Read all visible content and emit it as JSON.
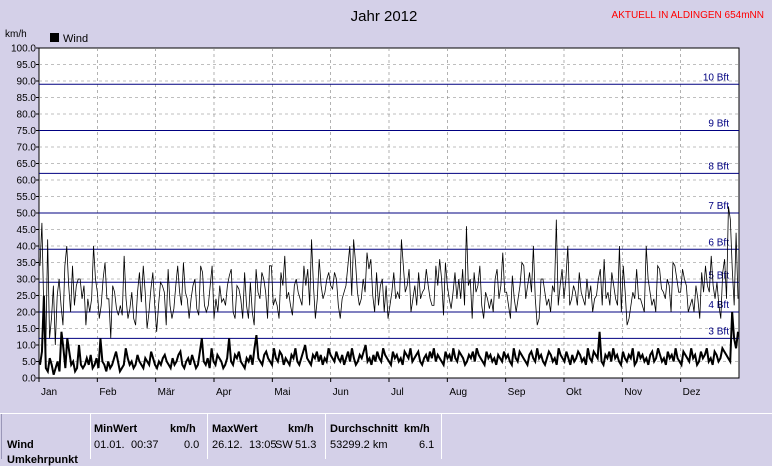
{
  "chart_data": {
    "type": "line",
    "title": "Jahr 2012",
    "station": "AKTUELL IN ALDINGEN 654mNN",
    "ylabel": "km/h",
    "ylim": [
      0,
      100
    ],
    "yticks": [
      "0.0",
      "5.0",
      "10.0",
      "15.0",
      "20.0",
      "25.0",
      "30.0",
      "35.0",
      "40.0",
      "45.0",
      "50.0",
      "55.0",
      "60.0",
      "65.0",
      "70.0",
      "75.0",
      "80.0",
      "85.0",
      "90.0",
      "95.0",
      "100.0"
    ],
    "months": [
      "Jan",
      "Feb",
      "Mär",
      "Apr",
      "Mai",
      "Jun",
      "Jul",
      "Aug",
      "Sep",
      "Okt",
      "Nov",
      "Dez"
    ],
    "legend": {
      "label": "Wind",
      "color": "#000000"
    },
    "beaufort": [
      {
        "label": "3 Bft",
        "value": 12
      },
      {
        "label": "4 Bft",
        "value": 20
      },
      {
        "label": "5 Bft",
        "value": 29
      },
      {
        "label": "6 Bft",
        "value": 39
      },
      {
        "label": "7 Bft",
        "value": 50
      },
      {
        "label": "8 Bft",
        "value": 62
      },
      {
        "label": "9 Bft",
        "value": 75
      },
      {
        "label": "10 Bft",
        "value": 89
      }
    ],
    "series": [
      {
        "name": "Wind",
        "description": "daily max (thin) and daily average (thick)",
        "max_values": [
          34,
          47,
          20,
          8,
          42,
          12,
          18,
          28,
          10,
          25,
          30,
          22,
          16,
          34,
          40,
          28,
          20,
          34,
          22,
          28,
          30,
          30,
          24,
          28,
          16,
          24,
          20,
          24,
          40,
          30,
          26,
          18,
          22,
          30,
          35,
          24,
          24,
          12,
          28,
          26,
          21,
          19,
          22,
          19,
          37,
          24,
          18,
          21,
          26,
          18,
          16,
          26,
          32,
          23,
          34,
          26,
          15,
          20,
          27,
          32,
          22,
          14,
          22,
          29,
          28,
          26,
          16,
          33,
          22,
          18,
          21,
          28,
          34,
          26,
          22,
          35,
          26,
          24,
          18,
          24,
          28,
          30,
          21,
          19,
          34,
          32,
          22,
          20,
          22,
          28,
          34,
          18,
          24,
          20,
          28,
          23,
          24,
          22,
          28,
          31,
          33,
          20,
          18,
          28,
          27,
          24,
          18,
          32,
          22,
          18,
          29,
          20,
          16,
          33,
          26,
          24,
          32,
          30,
          26,
          18,
          34,
          34,
          22,
          24,
          22,
          18,
          32,
          28,
          37,
          24,
          26,
          22,
          19,
          28,
          30,
          26,
          24,
          22,
          34,
          28,
          33,
          22,
          42,
          28,
          18,
          24,
          36,
          28,
          24,
          26,
          30,
          32,
          28,
          27,
          32,
          30,
          22,
          18,
          24,
          26,
          28,
          34,
          40,
          25,
          42,
          35,
          26,
          22,
          24,
          30,
          26,
          38,
          33,
          36,
          25,
          20,
          32,
          22,
          28,
          30,
          20,
          28,
          18,
          22,
          26,
          32,
          24,
          26,
          24,
          42,
          34,
          26,
          28,
          33,
          20,
          24,
          28,
          22,
          32,
          24,
          26,
          27,
          33,
          28,
          24,
          22,
          22,
          34,
          28,
          36,
          30,
          19,
          35,
          28,
          24,
          21,
          26,
          32,
          24,
          30,
          24,
          33,
          22,
          46,
          28,
          30,
          18,
          32,
          26,
          28,
          34,
          22,
          18,
          26,
          24,
          21,
          24,
          20,
          30,
          33,
          24,
          28,
          38,
          26,
          26,
          22,
          18,
          31,
          24,
          20,
          24,
          28,
          35,
          34,
          24,
          28,
          32,
          26,
          40,
          24,
          16,
          18,
          30,
          30,
          26,
          22,
          24,
          20,
          28,
          26,
          48,
          22,
          28,
          33,
          24,
          30,
          40,
          22,
          24,
          28,
          26,
          22,
          32,
          26,
          24,
          22,
          30,
          24,
          28,
          20,
          24,
          25,
          30,
          33,
          22,
          36,
          24,
          26,
          22,
          32,
          28,
          24,
          22,
          40,
          20,
          34,
          26,
          16,
          18,
          22,
          26,
          24,
          33,
          24,
          24,
          22,
          20,
          40,
          30,
          26,
          22,
          24,
          20,
          34,
          33,
          27,
          26,
          24,
          30,
          28,
          20,
          35,
          34,
          30,
          26,
          26,
          33,
          30,
          28,
          20,
          22,
          24,
          20,
          28,
          24,
          18,
          32,
          26,
          34,
          28,
          26,
          37,
          28,
          24,
          29,
          22,
          18,
          32,
          36,
          24,
          52,
          48,
          33,
          22,
          44,
          24
        ],
        "avg_values": [
          4,
          8,
          25,
          3,
          2,
          6,
          4,
          1,
          3,
          5,
          2,
          14,
          9,
          3,
          12,
          8,
          4,
          5,
          2,
          3,
          10,
          4,
          3,
          4,
          6,
          4,
          7,
          3,
          4,
          6,
          3,
          12,
          5,
          4,
          2,
          5,
          3,
          4,
          6,
          8,
          5,
          2,
          3,
          4,
          9,
          6,
          4,
          5,
          3,
          4,
          7,
          5,
          4,
          3,
          6,
          5,
          4,
          8,
          6,
          4,
          3,
          5,
          4,
          6,
          7,
          5,
          4,
          3,
          6,
          4,
          5,
          7,
          8,
          4,
          3,
          5,
          6,
          4,
          7,
          5,
          3,
          4,
          8,
          12,
          5,
          4,
          6,
          3,
          9,
          5,
          4,
          7,
          6,
          5,
          3,
          4,
          6,
          12,
          5,
          4,
          7,
          6,
          8,
          5,
          4,
          3,
          6,
          5,
          7,
          4,
          9,
          13,
          6,
          5,
          4,
          7,
          8,
          6,
          5,
          4,
          9,
          6,
          5,
          8,
          7,
          4,
          6,
          5,
          4,
          7,
          6,
          9,
          5,
          4,
          6,
          8,
          10,
          6,
          5,
          4,
          7,
          6,
          8,
          5,
          7,
          4,
          6,
          5,
          9,
          7,
          6,
          5,
          8,
          6,
          5,
          7,
          4,
          6,
          8,
          5,
          9,
          6,
          4,
          5,
          7,
          6,
          8,
          10,
          5,
          6,
          4,
          7,
          5,
          8,
          6,
          5,
          9,
          7,
          6,
          5,
          4,
          8,
          6,
          7,
          5,
          6,
          4,
          8,
          7,
          6,
          9,
          5,
          6,
          7,
          8,
          5,
          4,
          6,
          7,
          5,
          8,
          6,
          9,
          5,
          7,
          6,
          5,
          4,
          8,
          6,
          7,
          5,
          9,
          6,
          5,
          8,
          7,
          6,
          4,
          5,
          7,
          6,
          8,
          5,
          9,
          7,
          6,
          5,
          4,
          8,
          6,
          7,
          5,
          6,
          4,
          7,
          6,
          5,
          8,
          6,
          7,
          5,
          4,
          9,
          6,
          5,
          8,
          7,
          6,
          5,
          4,
          7,
          8,
          6,
          5,
          9,
          6,
          7,
          5,
          4,
          6,
          8,
          7,
          5,
          6,
          4,
          9,
          7,
          6,
          5,
          8,
          6,
          4,
          7,
          5,
          6,
          8,
          7,
          5,
          6,
          4,
          9,
          6,
          5,
          8,
          7,
          6,
          14,
          5,
          4,
          7,
          6,
          8,
          5,
          9,
          6,
          7,
          5,
          4,
          8,
          6,
          5,
          7,
          6,
          9,
          4,
          5,
          8,
          6,
          7,
          5,
          6,
          4,
          7,
          8,
          5,
          6,
          9,
          7,
          5,
          6,
          4,
          8,
          6,
          7,
          5,
          9,
          6,
          5,
          4,
          8,
          7,
          6,
          5,
          9,
          6,
          7,
          4,
          5,
          8,
          6,
          7,
          9,
          5,
          6,
          4,
          8,
          7,
          5,
          6,
          9,
          8,
          7,
          6,
          5,
          20,
          12,
          9,
          14
        ]
      }
    ]
  },
  "stats": {
    "row_label": "Wind",
    "row_label_2": "Umkehrpunkt",
    "min": {
      "header": "MinWert",
      "unit": "km/h",
      "date": "01.01.",
      "time": "00:37",
      "value": "0.0"
    },
    "max": {
      "header": "MaxWert",
      "unit": "km/h",
      "date": "26.12.",
      "time": "13:05",
      "dir": "SW",
      "value": "51.3"
    },
    "avg": {
      "header": "Durchschnitt",
      "unit": "km/h",
      "distance": "53299.2 km",
      "value": "6.1"
    }
  }
}
